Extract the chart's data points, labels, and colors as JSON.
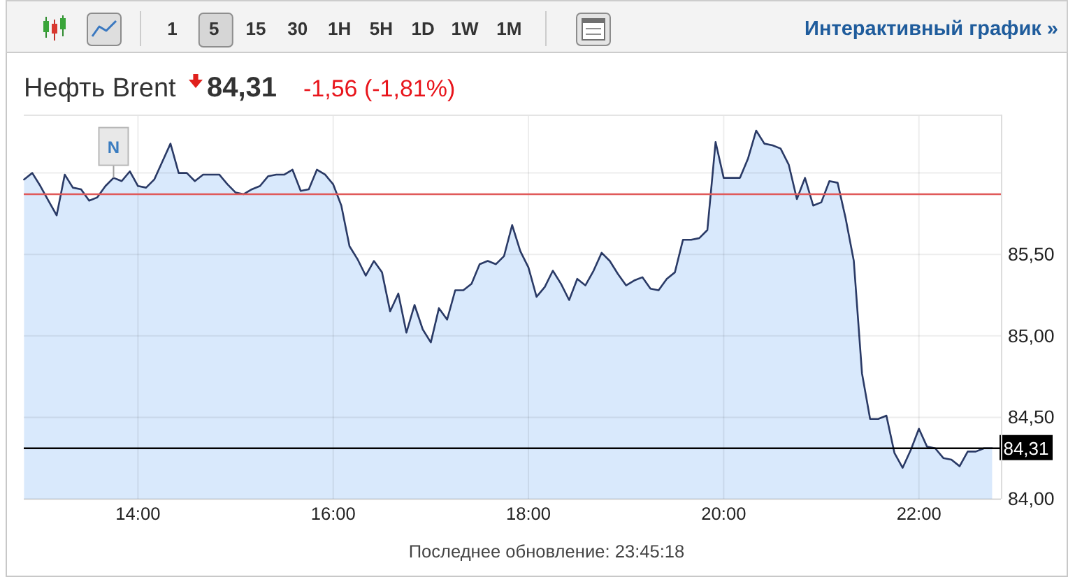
{
  "chart_data": {
    "type": "area",
    "title": "Нефть Brent",
    "subtitle": "84,31",
    "annotations": [
      "-1,56 (-1,81%)",
      "1 5 15 30 1H 5H 1D 1W 1M",
      "Интерактивный график »",
      "Последнее обновление: 23:45:18",
      {
        "text": "N",
        "x": 13.75,
        "y": 85.97
      }
    ],
    "x": [
      12.833,
      12.917,
      13,
      13.083,
      13.167,
      13.25,
      13.333,
      13.417,
      13.5,
      13.583,
      13.667,
      13.75,
      13.833,
      13.917,
      14,
      14.083,
      14.167,
      14.25,
      14.333,
      14.417,
      14.5,
      14.583,
      14.667,
      14.75,
      14.833,
      14.917,
      15,
      15.083,
      15.167,
      15.25,
      15.333,
      15.417,
      15.5,
      15.583,
      15.667,
      15.75,
      15.833,
      15.917,
      16,
      16.083,
      16.167,
      16.25,
      16.333,
      16.417,
      16.5,
      16.583,
      16.667,
      16.75,
      16.833,
      16.917,
      17,
      17.083,
      17.167,
      17.25,
      17.333,
      17.417,
      17.5,
      17.583,
      17.667,
      17.75,
      17.833,
      17.917,
      18,
      18.083,
      18.167,
      18.25,
      18.333,
      18.417,
      18.5,
      18.583,
      18.667,
      18.75,
      18.833,
      18.917,
      19,
      19.083,
      19.167,
      19.25,
      19.333,
      19.417,
      19.5,
      19.583,
      19.667,
      19.75,
      19.833,
      19.917,
      20,
      20.083,
      20.167,
      20.25,
      20.333,
      20.417,
      20.5,
      20.583,
      20.667,
      20.75,
      20.833,
      20.917,
      21,
      21.083,
      21.167,
      21.25,
      21.333,
      21.417,
      21.5,
      21.583,
      21.667,
      21.75,
      21.833,
      21.917,
      22,
      22.083,
      22.167,
      22.25,
      22.333,
      22.417,
      22.5,
      22.583,
      22.667,
      22.75
    ],
    "series": [
      {
        "color": "#2a3a66",
        "values": [
          85.96,
          86.0,
          85.92,
          85.83,
          85.74,
          85.99,
          85.91,
          85.9,
          85.83,
          85.85,
          85.92,
          85.97,
          85.95,
          86.01,
          85.92,
          85.91,
          85.96,
          86.07,
          86.18,
          86.0,
          86.0,
          85.95,
          85.99,
          85.99,
          85.99,
          85.93,
          85.88,
          85.87,
          85.9,
          85.92,
          85.98,
          85.99,
          85.99,
          86.02,
          85.89,
          85.9,
          86.02,
          85.99,
          85.93,
          85.8,
          85.55,
          85.47,
          85.37,
          85.46,
          85.39,
          85.15,
          85.26,
          85.02,
          85.19,
          85.04,
          84.96,
          85.17,
          85.1,
          85.28,
          85.28,
          85.32,
          85.44,
          85.46,
          85.44,
          85.49,
          85.68,
          85.52,
          85.42,
          85.24,
          85.3,
          85.4,
          85.32,
          85.22,
          85.35,
          85.31,
          85.4,
          85.51,
          85.46,
          85.38,
          85.31,
          85.34,
          85.36,
          85.29,
          85.28,
          85.35,
          85.39,
          85.59,
          85.59,
          85.6,
          85.65,
          86.19,
          85.97,
          85.97,
          85.97,
          86.09,
          86.26,
          86.18,
          86.17,
          86.15,
          86.05,
          85.84,
          85.97,
          85.8,
          85.82,
          85.95,
          85.94,
          85.72,
          85.46,
          84.77,
          84.49,
          84.49,
          84.51,
          84.28,
          84.19,
          84.3,
          84.43,
          84.32,
          84.31,
          84.25,
          84.24,
          84.2,
          84.29,
          84.29,
          84.31,
          84.31
        ]
      }
    ],
    "xlim": [
      12.83,
      22.84
    ],
    "xticks": [
      {
        "value": 14,
        "label": "14:00"
      },
      {
        "value": 16,
        "label": "16:00"
      },
      {
        "value": 18,
        "label": "18:00"
      },
      {
        "value": 20,
        "label": "20:00"
      },
      {
        "value": 22,
        "label": "22:00"
      }
    ],
    "ylim": [
      84,
      86.35
    ],
    "yticks": [
      {
        "value": 84,
        "label": "84,00"
      },
      {
        "value": 84.5,
        "label": "84,50"
      },
      {
        "value": 85,
        "label": "85,00"
      },
      {
        "value": 85.5,
        "label": "85,50"
      },
      {
        "value": 86,
        "label": null
      }
    ],
    "ref_lines": [
      {
        "axis": "y",
        "value": 85.87,
        "color": "#e05a5a"
      },
      {
        "axis": "y",
        "value": 84.31,
        "label": "84,31",
        "color": "#000000"
      }
    ],
    "grid": true
  }
}
